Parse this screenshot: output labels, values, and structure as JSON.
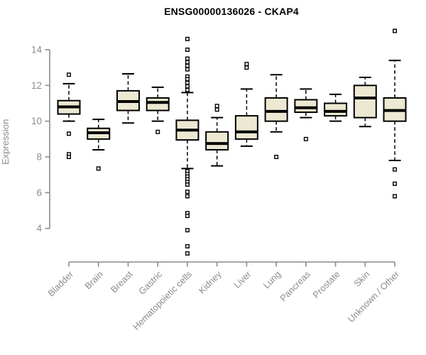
{
  "chart_data": {
    "type": "boxplot",
    "title": "ENSG00000136026 - CKAP4",
    "ylabel": "Expression",
    "xlabel": "",
    "yticks": [
      4,
      6,
      8,
      10,
      12,
      14
    ],
    "ylim": [
      4,
      14
    ],
    "grid": false,
    "legend": false,
    "categories": [
      "Bladder",
      "Brain",
      "Breast",
      "Gastric",
      "Hematopoietic cells",
      "Kidney",
      "Liver",
      "Lung",
      "Pancreas",
      "Prostate",
      "Skin",
      "Unknown / Other"
    ],
    "boxes": [
      {
        "category": "Bladder",
        "low": 10.0,
        "q1": 10.4,
        "median": 10.8,
        "q3": 11.15,
        "high": 12.1,
        "outliers": [
          12.6,
          9.3,
          8.15,
          8.0
        ]
      },
      {
        "category": "Brain",
        "low": 8.4,
        "q1": 9.0,
        "median": 9.35,
        "q3": 9.6,
        "high": 10.1,
        "outliers": [
          7.35
        ]
      },
      {
        "category": "Breast",
        "low": 9.9,
        "q1": 10.6,
        "median": 11.1,
        "q3": 11.7,
        "high": 12.65,
        "outliers": []
      },
      {
        "category": "Gastric",
        "low": 10.0,
        "q1": 10.6,
        "median": 11.05,
        "q3": 11.3,
        "high": 11.9,
        "outliers": [
          9.4
        ]
      },
      {
        "category": "Hematopoietic cells",
        "low": 7.35,
        "q1": 8.95,
        "median": 9.5,
        "q3": 10.05,
        "high": 11.6,
        "outliers": [
          14.6,
          14.0,
          13.5,
          13.3,
          13.1,
          12.9,
          12.5,
          12.35,
          12.15,
          11.95,
          11.75,
          7.2,
          7.05,
          6.9,
          6.75,
          6.6,
          6.45,
          6.05,
          5.8,
          4.85,
          4.7,
          3.9,
          3.0,
          2.6
        ]
      },
      {
        "category": "Kidney",
        "low": 7.5,
        "q1": 8.4,
        "median": 8.75,
        "q3": 9.4,
        "high": 10.2,
        "outliers": [
          10.85,
          10.65
        ]
      },
      {
        "category": "Liver",
        "low": 8.6,
        "q1": 9.0,
        "median": 9.4,
        "q3": 10.3,
        "high": 11.8,
        "outliers": [
          13.2,
          13.0
        ]
      },
      {
        "category": "Lung",
        "low": 9.4,
        "q1": 10.0,
        "median": 10.55,
        "q3": 11.3,
        "high": 12.6,
        "outliers": [
          8.0
        ]
      },
      {
        "category": "Pancreas",
        "low": 10.2,
        "q1": 10.5,
        "median": 10.75,
        "q3": 11.2,
        "high": 11.8,
        "outliers": [
          9.0
        ]
      },
      {
        "category": "Prostate",
        "low": 10.0,
        "q1": 10.3,
        "median": 10.55,
        "q3": 11.0,
        "high": 11.5,
        "outliers": []
      },
      {
        "category": "Skin",
        "low": 9.7,
        "q1": 10.2,
        "median": 11.3,
        "q3": 12.0,
        "high": 12.45,
        "outliers": []
      },
      {
        "category": "Unknown / Other",
        "low": 7.8,
        "q1": 10.0,
        "median": 10.6,
        "q3": 11.3,
        "high": 13.4,
        "outliers": [
          15.05,
          7.3,
          6.5,
          5.8
        ]
      }
    ],
    "colors": {
      "box_fill": "#EDE8D2",
      "box_stroke": "#000000",
      "median": "#000000",
      "whisker": "#000000",
      "axis": "#8A8A8A",
      "tick_label": "#8C8C8C",
      "title": "#000000",
      "background": "#FFFFFF"
    }
  }
}
